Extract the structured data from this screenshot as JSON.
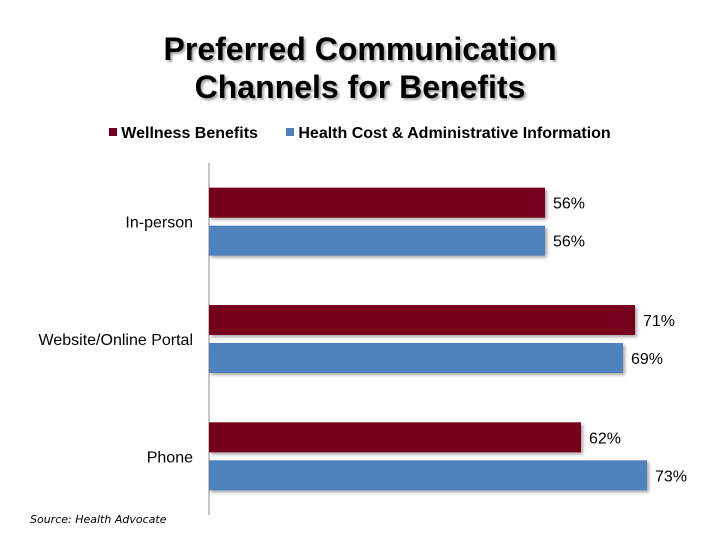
{
  "chart_data": {
    "type": "bar",
    "orientation": "horizontal",
    "title_lines": [
      "Preferred Communication",
      "Channels for Benefits"
    ],
    "categories": [
      "In-person",
      "Website/Online Portal",
      "Phone"
    ],
    "series": [
      {
        "name": "Wellness Benefits",
        "color": "#76001b",
        "values": [
          56,
          71,
          62
        ],
        "labels": [
          "56%",
          "71%",
          "62%"
        ]
      },
      {
        "name": "Health Cost & Administrative Information",
        "color": "#4f81bd",
        "values": [
          56,
          69,
          73
        ],
        "labels": [
          "56%",
          "69%",
          "73%"
        ]
      }
    ],
    "xlim": [
      0,
      80
    ],
    "grid": false,
    "legend_position": "top",
    "source": "Source: Health Advocate"
  }
}
